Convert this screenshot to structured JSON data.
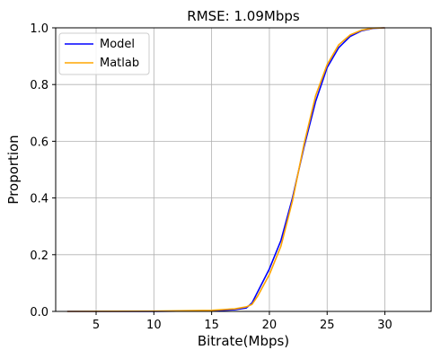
{
  "chart_data": {
    "type": "line",
    "title": "RMSE: 1.09Mbps",
    "xlabel": "Bitrate(Mbps)",
    "ylabel": "Proportion",
    "xlim": [
      1.5,
      34
    ],
    "ylim": [
      0,
      1.0
    ],
    "xticks": [
      5,
      10,
      15,
      20,
      25,
      30
    ],
    "yticks": [
      0.0,
      0.2,
      0.4,
      0.6,
      0.8,
      1.0
    ],
    "xtick_labels": [
      "5",
      "10",
      "15",
      "20",
      "25",
      "30"
    ],
    "ytick_labels": [
      "0.0",
      "0.2",
      "0.4",
      "0.6",
      "0.8",
      "1.0"
    ],
    "grid": true,
    "legend_position": "top-left",
    "series": [
      {
        "name": "Model",
        "color": "#0000ff",
        "x": [
          2.5,
          10,
          15,
          17,
          18,
          18.5,
          19,
          20,
          21,
          22,
          23,
          24,
          25,
          26,
          27,
          28,
          29,
          30
        ],
        "y": [
          0.0,
          0.0,
          0.002,
          0.006,
          0.012,
          0.03,
          0.07,
          0.15,
          0.25,
          0.4,
          0.58,
          0.74,
          0.86,
          0.93,
          0.97,
          0.99,
          0.998,
          1.0
        ]
      },
      {
        "name": "Matlab",
        "color": "#ffa500",
        "x": [
          2.5,
          10,
          15,
          17,
          18,
          18.5,
          19,
          20,
          21,
          22,
          23,
          24,
          25,
          26,
          27,
          28,
          29,
          30
        ],
        "y": [
          0.0,
          0.001,
          0.004,
          0.009,
          0.016,
          0.025,
          0.055,
          0.13,
          0.23,
          0.39,
          0.59,
          0.76,
          0.87,
          0.94,
          0.975,
          0.992,
          0.999,
          1.0
        ]
      }
    ]
  }
}
